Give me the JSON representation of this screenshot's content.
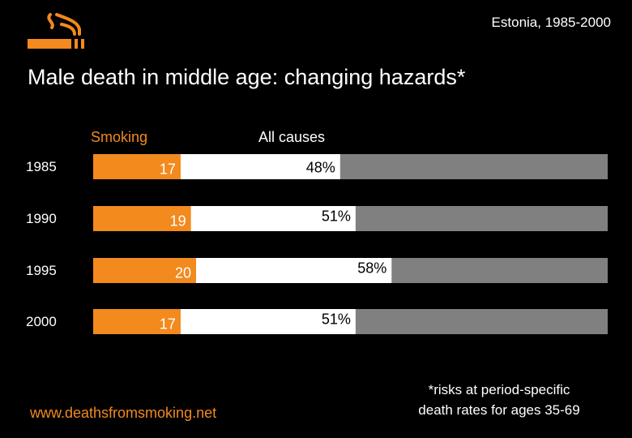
{
  "header": {
    "region": "Estonia, 1985-2000",
    "title": "Male death in middle age: changing hazards*",
    "logo_icon": "cigarette-smoke-icon"
  },
  "legend": {
    "smoking": "Smoking",
    "all_causes": "All causes"
  },
  "colors": {
    "smoking": "#f28a1e",
    "all_causes": "#ffffff",
    "remainder": "#808080",
    "background": "#000000"
  },
  "chart_data": {
    "type": "bar",
    "orientation": "horizontal",
    "stacked": true,
    "categories": [
      "1985",
      "1990",
      "1995",
      "2000"
    ],
    "series": [
      {
        "name": "Smoking",
        "values": [
          17,
          19,
          20,
          17
        ],
        "labels": [
          "17",
          "19",
          "20",
          "17"
        ]
      },
      {
        "name": "All causes",
        "values": [
          48,
          51,
          58,
          51
        ],
        "labels": [
          "48%",
          "51%",
          "58%",
          "51%"
        ]
      }
    ],
    "xlim": [
      0,
      100
    ],
    "grid": false
  },
  "footer": {
    "url": "www.deathsfromsmoking.net",
    "note_line1": "*risks at period-specific",
    "note_line2": "death rates for ages 35-69"
  }
}
